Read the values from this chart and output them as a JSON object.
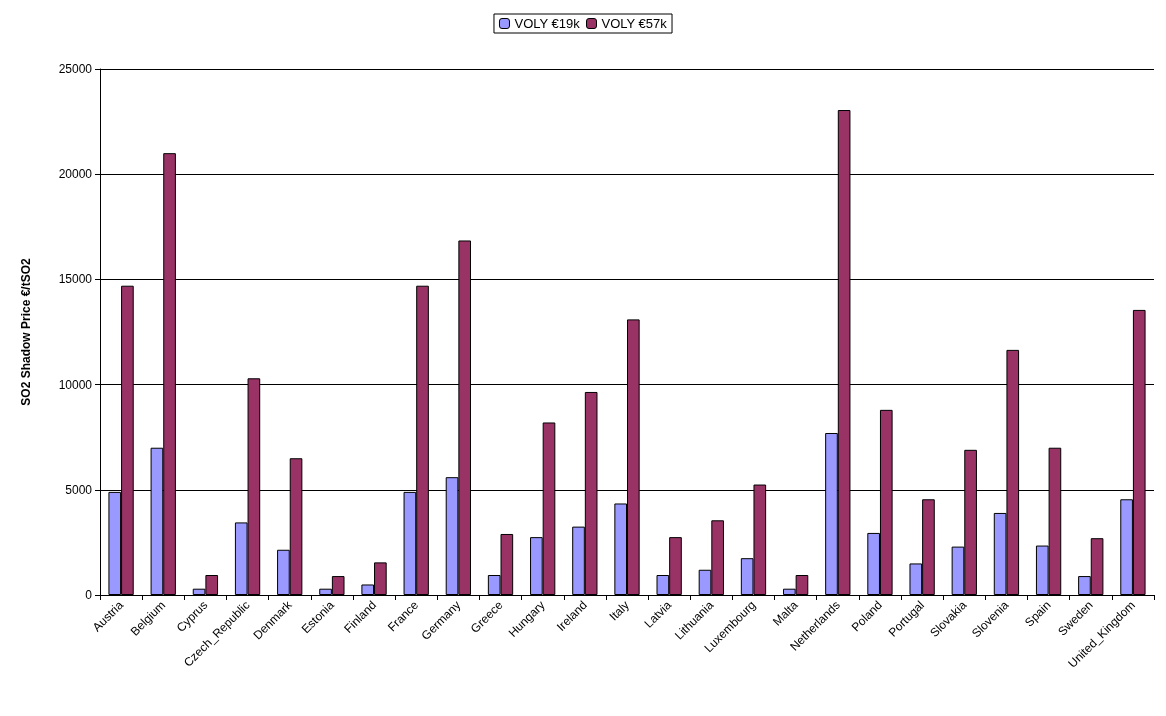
{
  "chart_data": {
    "type": "bar",
    "ylabel": "SO2 Shadow Price €/tSO2",
    "categories": [
      "Austria",
      "Belgium",
      "Cyprus",
      "Czech_Republic",
      "Denmark",
      "Estonia",
      "Finland",
      "France",
      "Germany",
      "Greece",
      "Hungary",
      "Ireland",
      "Italy",
      "Latvia",
      "Lithuania",
      "Luxembourg",
      "Malta",
      "Netherlands",
      "Poland",
      "Portugal",
      "Slovakia",
      "Slovenia",
      "Spain",
      "Sweden",
      "United_Kingdom"
    ],
    "series": [
      {
        "name": "VOLY €19k",
        "color": "#9999ff",
        "values": [
          4900,
          7000,
          300,
          3450,
          2150,
          300,
          500,
          4900,
          5600,
          950,
          2750,
          3250,
          4350,
          950,
          1200,
          1750,
          300,
          7700,
          2950,
          1500,
          2300,
          3900,
          2350,
          900,
          4550
        ]
      },
      {
        "name": "VOLY €57k",
        "color": "#993366",
        "values": [
          14700,
          21000,
          950,
          10300,
          6500,
          900,
          1550,
          14700,
          16850,
          2900,
          8200,
          9650,
          13100,
          2750,
          3550,
          5250,
          950,
          23050,
          8800,
          4550,
          6900,
          11650,
          7000,
          2700,
          13550
        ]
      }
    ],
    "ylim": [
      0,
      25000
    ],
    "yticks": [
      0,
      5000,
      10000,
      15000,
      20000,
      25000
    ],
    "grid": "y",
    "legend": "top"
  }
}
